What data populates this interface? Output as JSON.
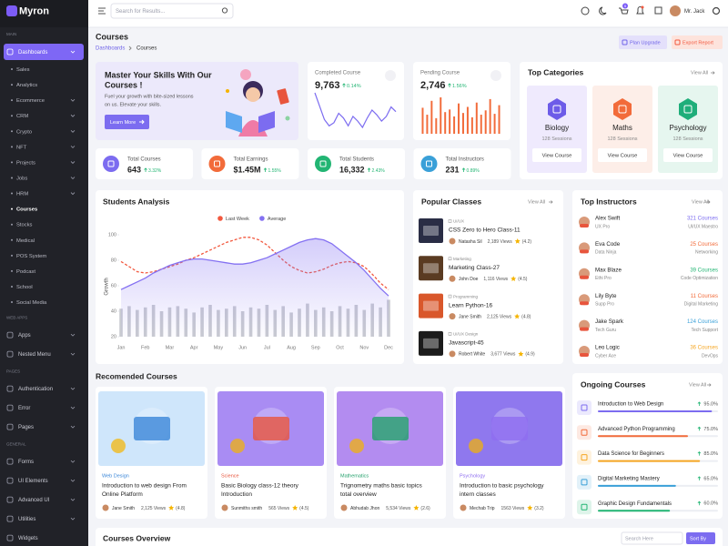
{
  "sidebar": {
    "brand": "Myron",
    "sections": [
      {
        "title": "MAIN",
        "items": [
          {
            "label": "Dashboards",
            "submenu": true,
            "active": true,
            "children": [
              {
                "label": "Sales"
              },
              {
                "label": "Analytics"
              },
              {
                "label": "Ecommerce",
                "submenu": true
              },
              {
                "label": "CRM",
                "submenu": true
              },
              {
                "label": "Crypto",
                "submenu": true
              },
              {
                "label": "NFT",
                "submenu": true
              },
              {
                "label": "Projects",
                "submenu": true
              },
              {
                "label": "Jobs",
                "submenu": true
              },
              {
                "label": "HRM",
                "submenu": true
              },
              {
                "label": "Courses",
                "active": true
              },
              {
                "label": "Stocks"
              },
              {
                "label": "Medical"
              },
              {
                "label": "POS System"
              },
              {
                "label": "Podcast"
              },
              {
                "label": "School"
              },
              {
                "label": "Social Media"
              }
            ]
          }
        ]
      },
      {
        "title": "WEB APPS",
        "items": [
          {
            "label": "Apps",
            "submenu": true
          },
          {
            "label": "Nested Menu",
            "submenu": true
          }
        ]
      },
      {
        "title": "PAGES",
        "items": [
          {
            "label": "Authentication",
            "submenu": true
          },
          {
            "label": "Error",
            "submenu": true
          },
          {
            "label": "Pages",
            "submenu": true
          }
        ]
      },
      {
        "title": "GENERAL",
        "items": [
          {
            "label": "Forms",
            "submenu": true
          },
          {
            "label": "UI Elements",
            "submenu": true
          },
          {
            "label": "Advanced UI",
            "submenu": true
          },
          {
            "label": "Utilities",
            "submenu": true
          },
          {
            "label": "Widgets"
          }
        ]
      }
    ]
  },
  "topbar": {
    "search_placeholder": "Search for Results...",
    "cart_badge": "5",
    "user": "Mr. Jack"
  },
  "header": {
    "title": "Courses",
    "breadcrumb": [
      "Dashboards",
      "Courses"
    ],
    "buttons": [
      "Plan Upgrade",
      "Export Report"
    ]
  },
  "hero": {
    "title": [
      "Master Your Skills With Our",
      "Courses !"
    ],
    "text": [
      "Fuel your growth with bite-sized lessons",
      "on us. Elevate your skills."
    ],
    "button": "Learn More"
  },
  "kpis": [
    {
      "label": "Completed Course",
      "value": "9,763",
      "change": "0.14%",
      "color": "#7c6cf0",
      "kind": "line",
      "spark": [
        72,
        55,
        38,
        30,
        34,
        46,
        40,
        30,
        42,
        36,
        28,
        40,
        50,
        44,
        36,
        42,
        54,
        48
      ]
    },
    {
      "label": "Pending Course",
      "value": "2,746",
      "change": "1.56%",
      "color": "#f26b3a",
      "kind": "bar",
      "spark": [
        30,
        22,
        38,
        18,
        42,
        25,
        28,
        20,
        35,
        24,
        31,
        19,
        36,
        22,
        27,
        40,
        23,
        33
      ]
    }
  ],
  "top_categories": {
    "title": "Top Categories",
    "view_all": "View All",
    "items": [
      {
        "name": "Biology",
        "sessions": "128 Sessions",
        "button": "View Course",
        "color": "#6d5ce8",
        "bg": "#efeafd"
      },
      {
        "name": "Maths",
        "sessions": "128 Sessions",
        "button": "View Course",
        "color": "#f26b3a",
        "bg": "#fdeee8"
      },
      {
        "name": "Psychology",
        "sessions": "128 Sessions",
        "button": "View Course",
        "color": "#1fae7a",
        "bg": "#e6f6ef"
      }
    ]
  },
  "stats": [
    {
      "label": "Total Courses",
      "value": "643",
      "change": "3.32%",
      "color": "#7c6cf0"
    },
    {
      "label": "Total Earnings",
      "value": "$1.45M",
      "change": "1.55%",
      "color": "#f26b3a"
    },
    {
      "label": "Total Students",
      "value": "16,332",
      "change": "2.43%",
      "color": "#22b573"
    },
    {
      "label": "Total Instructors",
      "value": "231",
      "change": "0.89%",
      "color": "#3aa0d8"
    }
  ],
  "chart_data": {
    "type": "line",
    "title": "Students Analysis",
    "y_label": "Growth",
    "categories": [
      "Jan",
      null,
      null,
      "Feb",
      null,
      null,
      "Mar",
      null,
      null,
      "Apr",
      null,
      null,
      "May",
      null,
      null,
      "Jun",
      null,
      null,
      "Jul",
      null,
      null,
      "Aug",
      null,
      null,
      "Sep",
      null,
      null,
      "Oct",
      null,
      null,
      "Nov",
      null,
      null,
      "Dec"
    ],
    "ylim": [
      20,
      100
    ],
    "yticks": [
      20,
      40,
      60,
      80,
      100
    ],
    "series": [
      {
        "type": "bar",
        "color": "#c9cbd1",
        "values": [
          42,
          44,
          41,
          43,
          45,
          40,
          43,
          44,
          42,
          39,
          43,
          45,
          41,
          42,
          44,
          40,
          43,
          42,
          45,
          41,
          44,
          39,
          42,
          46,
          41,
          43,
          40,
          44,
          42,
          45,
          41,
          46,
          43,
          49
        ]
      },
      {
        "name": "Last Week",
        "type": "line",
        "dashed": true,
        "color": "#f2583e",
        "values": [
          79,
          75,
          71,
          70,
          71,
          73,
          75,
          77,
          80,
          82,
          85,
          88,
          91,
          94,
          96,
          98,
          98,
          96,
          92,
          86,
          80,
          75,
          72,
          70,
          71,
          73,
          76,
          78,
          79,
          78,
          75,
          69,
          62,
          57
        ]
      },
      {
        "name": "Average",
        "type": "area",
        "color": "#8471f2",
        "values": [
          57,
          60,
          63,
          66,
          70,
          73,
          76,
          78,
          80,
          81,
          81,
          80,
          79,
          78,
          77,
          77,
          78,
          80,
          82,
          85,
          88,
          91,
          94,
          96,
          97,
          96,
          93,
          88,
          83,
          78,
          72,
          65,
          58,
          52
        ]
      }
    ]
  },
  "popular_classes": {
    "title": "Popular Classes",
    "view_all": "View All",
    "items": [
      {
        "tag": "UI/UX",
        "title": "CSS Zero to Hero Class-11",
        "author": "Natasha Sil",
        "views": "2,189 Views",
        "rating": "(4.2)",
        "color": "#2a2d45"
      },
      {
        "tag": "Marketing",
        "title": "Marketing Class-27",
        "author": "John Doe",
        "views": "1,116 Views",
        "rating": "(4.5)",
        "color": "#5a3b22"
      },
      {
        "tag": "Programming",
        "title": "Learn Python-16",
        "author": "Jane Smith",
        "views": "2,125 Views",
        "rating": "(4.8)",
        "color": "#d9572b"
      },
      {
        "tag": "UI/UX Design",
        "title": "Javascript-45",
        "author": "Robert White",
        "views": "3,677 Views",
        "rating": "(4.9)",
        "color": "#1c1c1c"
      }
    ]
  },
  "top_instructors": {
    "title": "Top Instructors",
    "view_all": "View All",
    "items": [
      {
        "name": "Alex Swift",
        "role": "UX Pro",
        "courses": "321 Courses",
        "specialty": "UI/UX Maestro",
        "color": "#7c6cf0"
      },
      {
        "name": "Eva Code",
        "role": "Data Ninja",
        "courses": "25 Courses",
        "specialty": "Networking",
        "color": "#f26b3a"
      },
      {
        "name": "Max Blaze",
        "role": "Ethi Pro",
        "courses": "39 Courses",
        "specialty": "Code Optimization",
        "color": "#22b573"
      },
      {
        "name": "Lily Byte",
        "role": "Supp Pro",
        "courses": "11 Courses",
        "specialty": "Digital Marketing",
        "color": "#f26b3a"
      },
      {
        "name": "Jake Spark",
        "role": "Tech Guru",
        "courses": "124 Courses",
        "specialty": "Tech Support",
        "color": "#3aa0d8"
      },
      {
        "name": "Leo Logic",
        "role": "Cyber Ace",
        "courses": "36 Courses",
        "specialty": "DevOps",
        "color": "#f5a623"
      }
    ]
  },
  "recommended": {
    "title": "Recomended Courses",
    "items": [
      {
        "tag": "Web Design",
        "title": [
          "Introduction to web design From",
          "Online Platform"
        ],
        "author": "Jane Smith",
        "views": "2,125 Views",
        "rating": "(4.8)",
        "color": "#3a86d8",
        "bg": "#cfe6fb"
      },
      {
        "tag": "Science",
        "title": [
          "Basic Biology class-12 theory",
          "Introduction"
        ],
        "author": "Sunmiths smith",
        "views": "565 Views",
        "rating": "(4.5)",
        "color": "#e8553d",
        "bg": "#a98cf3"
      },
      {
        "tag": "Mathematics",
        "title": [
          "Trignometry maths basic topics",
          "total overview"
        ],
        "author": "Abhudab Jhon",
        "views": "5,534 Views",
        "rating": "(2.6)",
        "color": "#22a06b",
        "bg": "#b38cf0"
      },
      {
        "tag": "Psychology",
        "title": [
          "Introduction to basic psychology",
          "intern classes"
        ],
        "author": "Mechab Trip",
        "views": "1563 Views",
        "rating": "(3.2)",
        "color": "#8e6df0",
        "bg": "#8f78ee"
      }
    ]
  },
  "ongoing": {
    "title": "Ongoing Courses",
    "view_all": "View All",
    "items": [
      {
        "name": "Introduction to Web Design",
        "value": 95,
        "label": "95.0%",
        "color": "#7c6cf0"
      },
      {
        "name": "Advanced Python Programming",
        "value": 75,
        "label": "75.0%",
        "color": "#f26b3a"
      },
      {
        "name": "Data Science for Beginners",
        "value": 85,
        "label": "85.0%",
        "color": "#f5a623"
      },
      {
        "name": "Digital Marketing Mastery",
        "value": 65,
        "label": "65.0%",
        "color": "#3aa0d8"
      },
      {
        "name": "Graphic Design Fundamentals",
        "value": 60,
        "label": "60.0%",
        "color": "#22b573"
      }
    ]
  },
  "overview": {
    "title": "Courses Overview",
    "search_placeholder": "Search Here",
    "sort": "Sort By"
  }
}
